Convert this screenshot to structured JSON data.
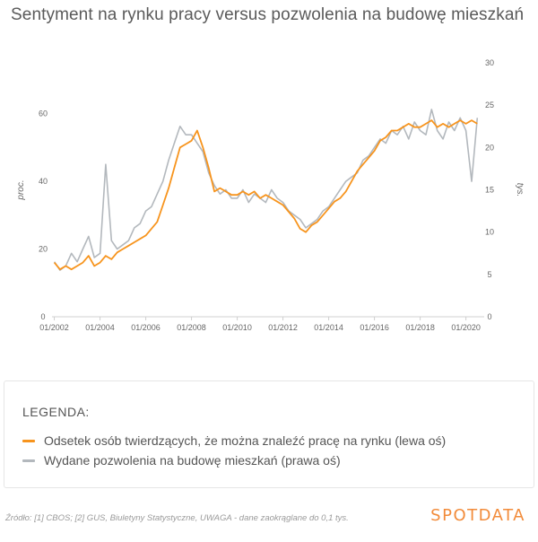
{
  "title": "Sentyment na rynku pracy versus pozwolenia na budowę mieszkań",
  "legend": {
    "heading": "LEGENDA:",
    "items": [
      {
        "label": "Odsetek osób twierdzących, że można znaleźć pracę na rynku (lewa oś)",
        "color": "#f7941d"
      },
      {
        "label": "Wydane pozwolenia na budowę mieszkań (prawa oś)",
        "color": "#b3b8bd"
      }
    ]
  },
  "footer": "Źródło: [1] CBOS; [2] GUS, Biuletyny Statystyczne, UWAGA - dane zaokrąglane do 0,1 tys.",
  "logo": "SPOTDATA",
  "chart_data": {
    "type": "line",
    "x_ticks": [
      "01/2002",
      "01/2004",
      "01/2006",
      "01/2008",
      "01/2010",
      "01/2012",
      "01/2014",
      "01/2016",
      "01/2018",
      "01/2020"
    ],
    "y_left": {
      "label": "proc.",
      "ticks": [
        0,
        20,
        40,
        60
      ],
      "range": [
        0,
        75
      ]
    },
    "y_right": {
      "label": "tys.",
      "ticks": [
        0,
        5,
        10,
        15,
        20,
        25,
        30
      ],
      "range": [
        0,
        30
      ]
    },
    "x_range": [
      2002.0,
      2020.75
    ],
    "series": [
      {
        "name": "Odsetek osób twierdzących, że można znaleźć pracę na rynku (lewa oś)",
        "axis": "left",
        "color": "#f7941d",
        "points": [
          [
            2002.0,
            16
          ],
          [
            2002.25,
            14
          ],
          [
            2002.5,
            15
          ],
          [
            2002.75,
            14
          ],
          [
            2003.0,
            15
          ],
          [
            2003.25,
            16
          ],
          [
            2003.5,
            18
          ],
          [
            2003.75,
            15
          ],
          [
            2004.0,
            16
          ],
          [
            2004.25,
            18
          ],
          [
            2004.5,
            17
          ],
          [
            2004.75,
            19
          ],
          [
            2005.0,
            20
          ],
          [
            2005.25,
            21
          ],
          [
            2005.5,
            22
          ],
          [
            2005.75,
            23
          ],
          [
            2006.0,
            24
          ],
          [
            2006.25,
            26
          ],
          [
            2006.5,
            28
          ],
          [
            2006.75,
            33
          ],
          [
            2007.0,
            38
          ],
          [
            2007.25,
            44
          ],
          [
            2007.5,
            50
          ],
          [
            2007.75,
            51
          ],
          [
            2008.0,
            52
          ],
          [
            2008.25,
            55
          ],
          [
            2008.5,
            50
          ],
          [
            2008.75,
            44
          ],
          [
            2009.0,
            37
          ],
          [
            2009.25,
            38
          ],
          [
            2009.5,
            37
          ],
          [
            2009.75,
            36
          ],
          [
            2010.0,
            36
          ],
          [
            2010.25,
            37
          ],
          [
            2010.5,
            36
          ],
          [
            2010.75,
            37
          ],
          [
            2011.0,
            35
          ],
          [
            2011.25,
            36
          ],
          [
            2011.5,
            35
          ],
          [
            2011.75,
            34
          ],
          [
            2012.0,
            33
          ],
          [
            2012.25,
            31
          ],
          [
            2012.5,
            29
          ],
          [
            2012.75,
            26
          ],
          [
            2013.0,
            25
          ],
          [
            2013.25,
            27
          ],
          [
            2013.5,
            28
          ],
          [
            2013.75,
            30
          ],
          [
            2014.0,
            32
          ],
          [
            2014.25,
            34
          ],
          [
            2014.5,
            35
          ],
          [
            2014.75,
            37
          ],
          [
            2015.0,
            40
          ],
          [
            2015.25,
            43
          ],
          [
            2015.5,
            45
          ],
          [
            2015.75,
            47
          ],
          [
            2016.0,
            49
          ],
          [
            2016.25,
            52
          ],
          [
            2016.5,
            53
          ],
          [
            2016.75,
            55
          ],
          [
            2017.0,
            55
          ],
          [
            2017.25,
            56
          ],
          [
            2017.5,
            57
          ],
          [
            2017.75,
            56
          ],
          [
            2018.0,
            56
          ],
          [
            2018.25,
            57
          ],
          [
            2018.5,
            58
          ],
          [
            2018.75,
            56
          ],
          [
            2019.0,
            57
          ],
          [
            2019.25,
            56
          ],
          [
            2019.5,
            57
          ],
          [
            2019.75,
            58
          ],
          [
            2020.0,
            57
          ],
          [
            2020.25,
            58
          ],
          [
            2020.5,
            57
          ]
        ]
      },
      {
        "name": "Wydane pozwolenia na budowę mieszkań (prawa oś)",
        "axis": "right",
        "color": "#b3b8bd",
        "points": [
          [
            2002.0,
            6.5
          ],
          [
            2002.25,
            5.5
          ],
          [
            2002.5,
            6.0
          ],
          [
            2002.75,
            7.5
          ],
          [
            2003.0,
            6.5
          ],
          [
            2003.25,
            8.0
          ],
          [
            2003.5,
            9.5
          ],
          [
            2003.75,
            7.0
          ],
          [
            2004.0,
            7.5
          ],
          [
            2004.25,
            18.0
          ],
          [
            2004.5,
            9.0
          ],
          [
            2004.75,
            8.0
          ],
          [
            2005.0,
            8.5
          ],
          [
            2005.25,
            9.0
          ],
          [
            2005.5,
            10.5
          ],
          [
            2005.75,
            11.0
          ],
          [
            2006.0,
            12.5
          ],
          [
            2006.25,
            13.0
          ],
          [
            2006.5,
            14.5
          ],
          [
            2006.75,
            16.0
          ],
          [
            2007.0,
            18.5
          ],
          [
            2007.25,
            20.5
          ],
          [
            2007.5,
            22.5
          ],
          [
            2007.75,
            21.5
          ],
          [
            2008.0,
            21.5
          ],
          [
            2008.25,
            20.5
          ],
          [
            2008.5,
            19.5
          ],
          [
            2008.75,
            17.0
          ],
          [
            2009.0,
            15.5
          ],
          [
            2009.25,
            14.5
          ],
          [
            2009.5,
            15.0
          ],
          [
            2009.75,
            14.0
          ],
          [
            2010.0,
            14.0
          ],
          [
            2010.25,
            15.0
          ],
          [
            2010.5,
            13.5
          ],
          [
            2010.75,
            14.5
          ],
          [
            2011.0,
            14.0
          ],
          [
            2011.25,
            13.5
          ],
          [
            2011.5,
            15.0
          ],
          [
            2011.75,
            14.0
          ],
          [
            2012.0,
            13.5
          ],
          [
            2012.25,
            12.5
          ],
          [
            2012.5,
            12.0
          ],
          [
            2012.75,
            11.5
          ],
          [
            2013.0,
            10.5
          ],
          [
            2013.25,
            11.0
          ],
          [
            2013.5,
            11.5
          ],
          [
            2013.75,
            12.5
          ],
          [
            2014.0,
            13.0
          ],
          [
            2014.25,
            14.0
          ],
          [
            2014.5,
            15.0
          ],
          [
            2014.75,
            16.0
          ],
          [
            2015.0,
            16.5
          ],
          [
            2015.25,
            17.0
          ],
          [
            2015.5,
            18.5
          ],
          [
            2015.75,
            19.0
          ],
          [
            2016.0,
            20.0
          ],
          [
            2016.25,
            21.0
          ],
          [
            2016.5,
            20.5
          ],
          [
            2016.75,
            22.0
          ],
          [
            2017.0,
            21.5
          ],
          [
            2017.25,
            22.5
          ],
          [
            2017.5,
            21.0
          ],
          [
            2017.75,
            23.0
          ],
          [
            2018.0,
            22.0
          ],
          [
            2018.25,
            21.5
          ],
          [
            2018.5,
            24.5
          ],
          [
            2018.75,
            22.0
          ],
          [
            2019.0,
            21.0
          ],
          [
            2019.25,
            23.0
          ],
          [
            2019.5,
            22.0
          ],
          [
            2019.75,
            23.5
          ],
          [
            2020.0,
            22.0
          ],
          [
            2020.25,
            16.0
          ],
          [
            2020.5,
            23.5
          ]
        ]
      }
    ]
  }
}
